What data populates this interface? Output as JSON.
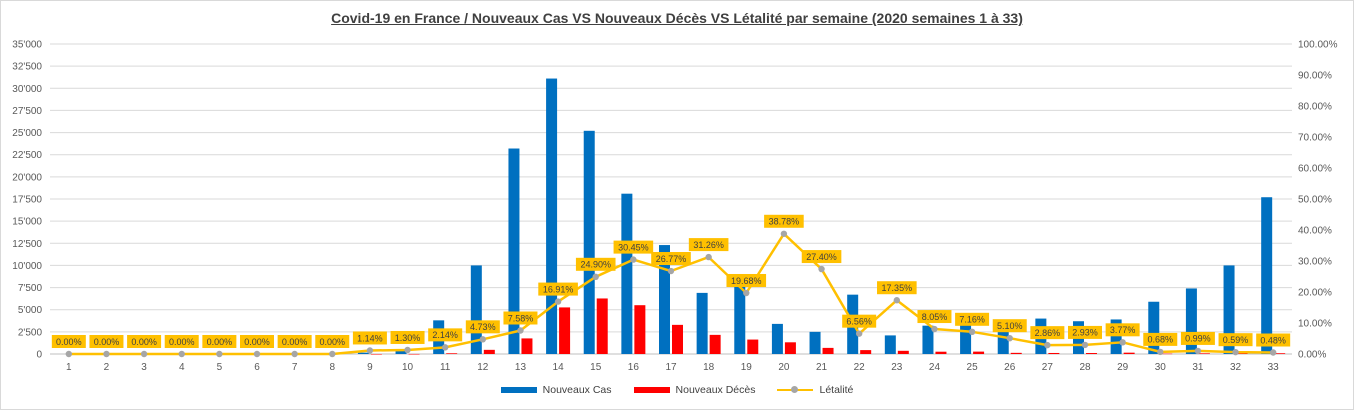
{
  "chart_data": {
    "type": "bar",
    "title": "Covid-19 en France / Nouveaux Cas VS Nouveaux Décès VS Létalité par semaine (2020 semaines 1 à 33)",
    "categories": [
      "1",
      "2",
      "3",
      "4",
      "5",
      "6",
      "7",
      "8",
      "9",
      "10",
      "11",
      "12",
      "13",
      "14",
      "15",
      "16",
      "17",
      "18",
      "19",
      "20",
      "21",
      "22",
      "23",
      "24",
      "25",
      "26",
      "27",
      "28",
      "29",
      "30",
      "31",
      "32",
      "33"
    ],
    "series": [
      {
        "name": "Nouveaux Cas",
        "type": "bar",
        "axis": "left",
        "color": "#0070c0",
        "values": [
          0,
          0,
          0,
          0,
          0,
          0,
          0,
          0,
          150,
          350,
          3800,
          10000,
          23200,
          31100,
          25200,
          18100,
          12300,
          6900,
          8300,
          3400,
          2500,
          6700,
          2100,
          3200,
          3700,
          2600,
          4000,
          3700,
          3900,
          5900,
          7400,
          10000,
          17700
        ]
      },
      {
        "name": "Nouveaux Décès",
        "type": "bar",
        "axis": "left",
        "color": "#ff0000",
        "values": [
          0,
          0,
          0,
          0,
          0,
          0,
          0,
          0,
          2,
          5,
          80,
          470,
          1760,
          5260,
          6270,
          5510,
          3290,
          2160,
          1630,
          1320,
          690,
          440,
          360,
          260,
          270,
          130,
          115,
          110,
          150,
          40,
          75,
          60,
          85
        ]
      },
      {
        "name": "Létalité",
        "type": "line",
        "axis": "right",
        "color": "#ffc000",
        "marker_color": "#a6a6a6",
        "values": [
          0,
          0,
          0,
          0,
          0,
          0,
          0,
          0,
          1.14,
          1.3,
          2.14,
          4.73,
          7.58,
          16.91,
          24.9,
          30.45,
          26.77,
          31.26,
          19.68,
          38.78,
          27.4,
          6.56,
          17.35,
          8.05,
          7.16,
          5.1,
          2.86,
          2.93,
          3.77,
          0.68,
          0.99,
          0.59,
          0.48
        ],
        "labels": [
          "0.00%",
          "0.00%",
          "0.00%",
          "0.00%",
          "0.00%",
          "0.00%",
          "0.00%",
          "0.00%",
          "1.14%",
          "1.30%",
          "2.14%",
          "4.73%",
          "7.58%",
          "16.91%",
          "24.90%",
          "30.45%",
          "26.77%",
          "31.26%",
          "19.68%",
          "38.78%",
          "27.40%",
          "6.56%",
          "17.35%",
          "8.05%",
          "7.16%",
          "5.10%",
          "2.86%",
          "2.93%",
          "3.77%",
          "0.68%",
          "0.99%",
          "0.59%",
          "0.48%"
        ]
      }
    ],
    "ylim": [
      0,
      35000
    ],
    "y_ticks": [
      "0",
      "2'500",
      "5'000",
      "7'500",
      "10'000",
      "12'500",
      "15'000",
      "17'500",
      "20'000",
      "22'500",
      "25'000",
      "27'500",
      "30'000",
      "32'500",
      "35'000"
    ],
    "y2lim": [
      0,
      100
    ],
    "y2_ticks": [
      "0.00%",
      "10.00%",
      "20.00%",
      "30.00%",
      "40.00%",
      "50.00%",
      "60.00%",
      "70.00%",
      "80.00%",
      "90.00%",
      "100.00%"
    ],
    "xlabel": "",
    "ylabel": "",
    "grid": true,
    "legend": "bottom",
    "colors": {
      "grid": "#d9d9d9",
      "axis_text": "#595959",
      "label_bg": "#ffc000",
      "label_text": "#404040"
    }
  }
}
